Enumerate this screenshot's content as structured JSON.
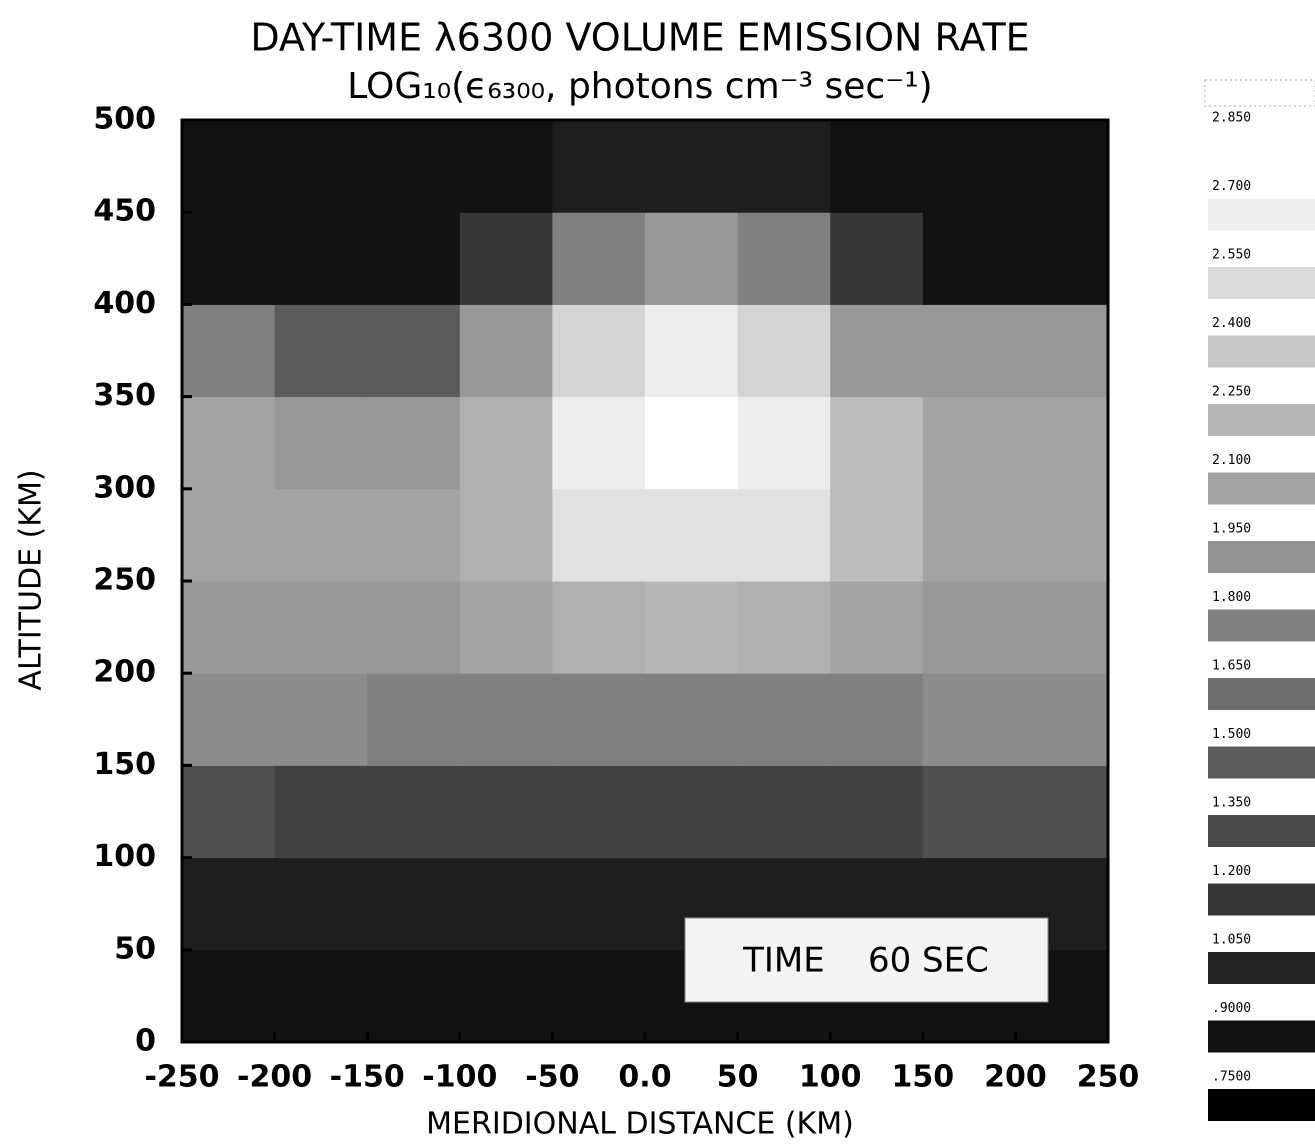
{
  "chart_data": {
    "type": "heatmap",
    "title": "DAY-TIME λ6300 VOLUME EMISSION RATE",
    "subtitle": "LOG₁₀(ϵ₆₃₀₀, photons cm⁻³ sec⁻¹)",
    "x_label": "MERIDIONAL DISTANCE (KM)",
    "y_label": "ALTITUDE (KM)",
    "annotation": "TIME    60 SEC",
    "x": [
      -225,
      -175,
      -125,
      -75,
      -25,
      25,
      75,
      125,
      175,
      225
    ],
    "y": [
      25,
      75,
      125,
      175,
      225,
      275,
      325,
      375,
      425,
      475
    ],
    "z": [
      [
        0.9,
        0.9,
        0.9,
        0.9,
        0.9,
        0.9,
        0.9,
        0.9,
        0.9,
        0.9
      ],
      [
        1.0,
        1.0,
        1.0,
        1.0,
        1.0,
        1.0,
        1.0,
        1.0,
        1.0,
        1.0
      ],
      [
        1.4,
        1.3,
        1.3,
        1.3,
        1.3,
        1.3,
        1.3,
        1.3,
        1.4,
        1.4
      ],
      [
        1.9,
        1.9,
        1.8,
        1.8,
        1.8,
        1.8,
        1.8,
        1.8,
        1.9,
        1.9
      ],
      [
        2.0,
        2.0,
        2.0,
        2.1,
        2.2,
        2.25,
        2.2,
        2.1,
        2.0,
        2.0
      ],
      [
        2.1,
        2.1,
        2.1,
        2.2,
        2.6,
        2.6,
        2.6,
        2.3,
        2.1,
        2.1
      ],
      [
        2.1,
        2.0,
        2.0,
        2.2,
        2.7,
        2.85,
        2.7,
        2.3,
        2.1,
        2.1
      ],
      [
        1.8,
        1.5,
        1.5,
        2.0,
        2.5,
        2.7,
        2.5,
        2.0,
        2.0,
        2.0
      ],
      [
        0.9,
        0.9,
        0.9,
        1.2,
        1.8,
        2.0,
        1.8,
        1.2,
        0.9,
        0.9
      ],
      [
        0.9,
        0.9,
        0.9,
        0.9,
        1.0,
        1.0,
        1.0,
        0.9,
        0.9,
        0.9
      ]
    ],
    "xlim": [
      -250,
      250
    ],
    "ylim": [
      0,
      500
    ],
    "xticks": [
      -250,
      -200,
      -150,
      -100,
      -50,
      {
        "value": 0,
        "label": "0.0"
      },
      50,
      100,
      150,
      200,
      250
    ],
    "yticks": [
      0,
      50,
      100,
      150,
      200,
      250,
      300,
      350,
      400,
      450,
      500
    ],
    "colorscale": [
      "#000000",
      "#ffffff"
    ],
    "colorbar_ticks": [
      {
        "value": 2.85,
        "label": "2.850"
      },
      {
        "value": 2.7,
        "label": "2.700"
      },
      {
        "value": 2.55,
        "label": "2.550"
      },
      {
        "value": 2.4,
        "label": "2.400"
      },
      {
        "value": 2.25,
        "label": "2.250"
      },
      {
        "value": 2.1,
        "label": "2.100"
      },
      {
        "value": 1.95,
        "label": "1.950"
      },
      {
        "value": 1.8,
        "label": "1.800"
      },
      {
        "value": 1.65,
        "label": "1.650"
      },
      {
        "value": 1.5,
        "label": "1.500"
      },
      {
        "value": 1.35,
        "label": "1.350"
      },
      {
        "value": 1.2,
        "label": "1.200"
      },
      {
        "value": 1.05,
        "label": "1.050"
      },
      {
        "value": 0.9,
        "label": ".9000"
      },
      {
        "value": 0.75,
        "label": ".7500"
      }
    ]
  }
}
